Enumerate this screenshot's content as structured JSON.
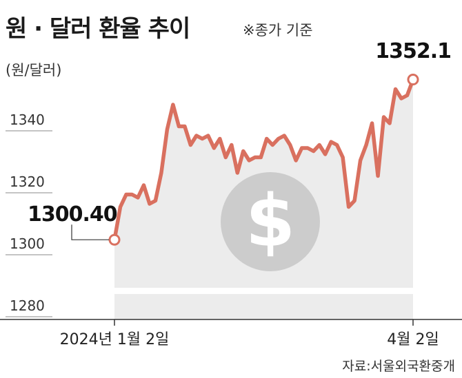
{
  "header": {
    "title": "원 · 달러 환율 추이",
    "subtitle": "※종가 기준",
    "unit": "(원/달러)"
  },
  "source": "자료:서울외국환중개",
  "colors": {
    "line": "#d9705f",
    "area": "#ececec",
    "dollar_coin": "#cccccc",
    "marker_fill": "#ffffff",
    "axis": "#333333"
  },
  "icons": {
    "background": "dollar-coin-icon"
  },
  "chart_data": {
    "type": "line",
    "title": "원 · 달러 환율 추이",
    "subtitle": "※종가 기준",
    "ylabel": "(원/달러)",
    "ylim": [
      1276,
      1360
    ],
    "yticks": [
      1280,
      1300,
      1320,
      1340
    ],
    "x_tick_labels": [
      "2024년 1월 2일",
      "4월 2일"
    ],
    "x_range": [
      "2024-01-02",
      "2024-04-02"
    ],
    "series": [
      {
        "values": [
          1300.4,
          1311,
          1315,
          1315,
          1314,
          1318,
          1312,
          1313,
          1322,
          1336,
          1344,
          1337,
          1337,
          1331,
          1334,
          1333,
          1334,
          1330,
          1333,
          1327,
          1331,
          1322,
          1329,
          1326,
          1327,
          1327,
          1333,
          1331,
          1333,
          1334,
          1331,
          1326,
          1330,
          1330,
          1329,
          1331,
          1328,
          1332,
          1331,
          1327,
          1311,
          1313,
          1326,
          1331,
          1338,
          1321,
          1340,
          1338,
          1349,
          1346,
          1347,
          1352.1
        ]
      }
    ],
    "annotations": [
      {
        "label": "1300.40",
        "value": 1300.4,
        "point": "first"
      },
      {
        "label": "1352.1",
        "value": 1352.1,
        "point": "last"
      }
    ],
    "grid": false,
    "legend": "none"
  }
}
